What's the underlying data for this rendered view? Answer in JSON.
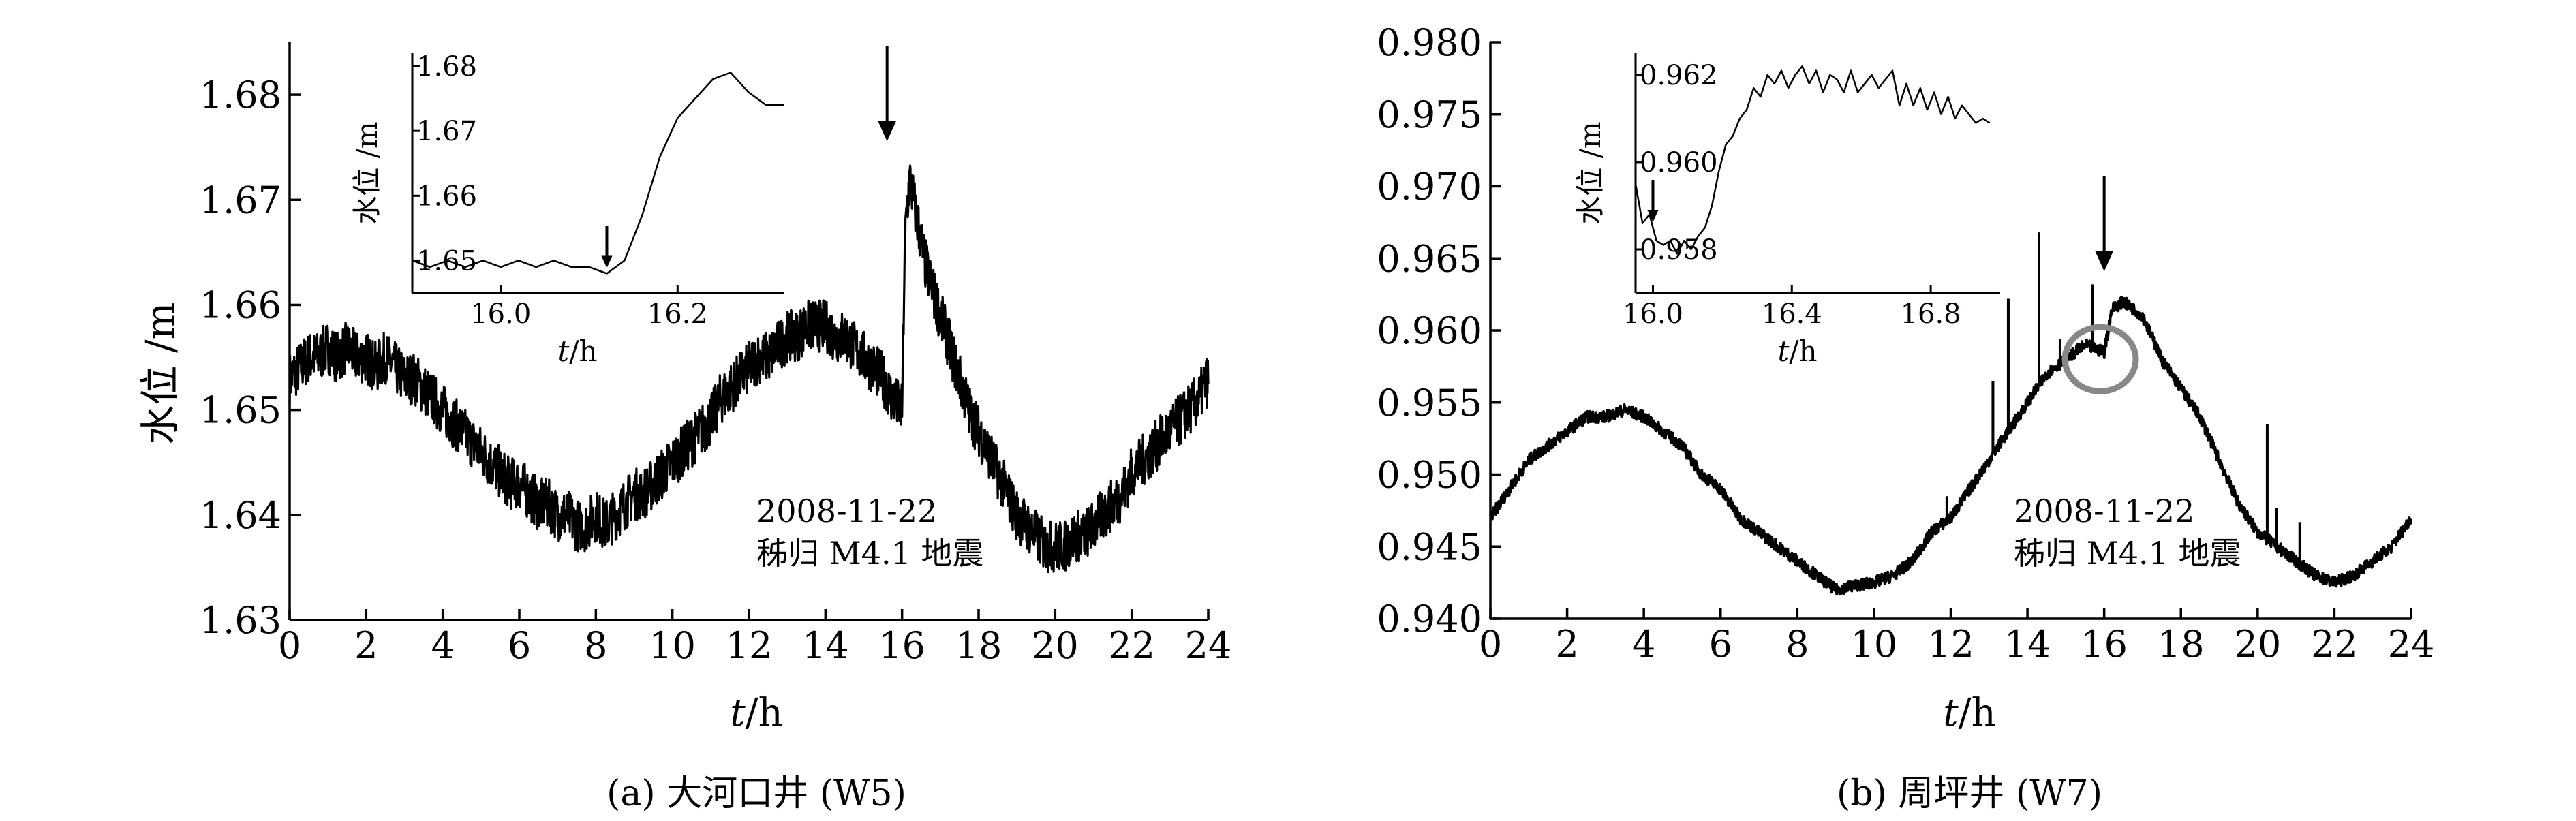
{
  "chart_data": [
    {
      "panel": "a",
      "type": "line",
      "caption": "(a) 大河口井 (W5)",
      "xlabel_italic": "t",
      "xlabel_unit": "/h",
      "ylabel": "水位 /m",
      "xlim": [
        0,
        24
      ],
      "ylim": [
        1.63,
        1.685
      ],
      "xticks": [
        "0",
        "2",
        "4",
        "6",
        "8",
        "10",
        "12",
        "14",
        "16",
        "18",
        "20",
        "22",
        "24"
      ],
      "yticks": [
        "1.63",
        "1.64",
        "1.65",
        "1.66",
        "1.67",
        "1.68"
      ],
      "annotation_date": "2008-11-22",
      "annotation_event": "秭归 M4.1 地震",
      "arrow_x": 16.0,
      "series": [
        {
          "x": [
            0,
            0.25,
            0.5,
            0.75,
            1,
            1.25,
            1.5,
            1.75,
            2,
            2.25,
            2.5,
            2.75,
            3,
            3.25,
            3.5,
            3.75,
            4,
            4.25,
            4.5,
            4.75,
            5,
            5.25,
            5.5,
            5.75,
            6,
            6.25,
            6.5,
            6.75,
            7,
            7.25,
            7.5,
            7.75,
            8,
            8.25,
            8.5,
            8.75,
            9,
            9.25,
            9.5,
            9.75,
            10,
            10.25,
            10.5,
            10.75,
            11,
            11.25,
            11.5,
            11.75,
            12,
            12.25,
            12.5,
            12.75,
            13,
            13.25,
            13.5,
            13.75,
            14,
            14.25,
            14.5,
            14.75,
            15,
            15.25,
            15.5,
            15.75,
            16,
            16.05,
            16.1,
            16.2,
            16.3,
            16.4,
            16.5,
            16.6,
            16.75,
            17,
            17.25,
            17.5,
            17.75,
            18,
            18.25,
            18.5,
            18.75,
            19,
            19.25,
            19.5,
            19.75,
            20,
            20.25,
            20.5,
            20.75,
            21,
            21.25,
            21.5,
            21.75,
            22,
            22.25,
            22.5,
            22.75,
            23,
            23.25,
            23.5,
            23.75,
            24
          ],
          "y": [
            1.653,
            1.654,
            1.655,
            1.655,
            1.656,
            1.655,
            1.656,
            1.655,
            1.655,
            1.654,
            1.655,
            1.654,
            1.653,
            1.653,
            1.652,
            1.651,
            1.65,
            1.649,
            1.648,
            1.647,
            1.646,
            1.645,
            1.644,
            1.643,
            1.643,
            1.642,
            1.641,
            1.641,
            1.64,
            1.64,
            1.639,
            1.639,
            1.64,
            1.639,
            1.64,
            1.641,
            1.642,
            1.642,
            1.643,
            1.644,
            1.645,
            1.646,
            1.647,
            1.648,
            1.649,
            1.651,
            1.652,
            1.653,
            1.654,
            1.655,
            1.655,
            1.656,
            1.657,
            1.657,
            1.658,
            1.658,
            1.658,
            1.657,
            1.657,
            1.656,
            1.655,
            1.654,
            1.653,
            1.651,
            1.65,
            1.661,
            1.668,
            1.672,
            1.67,
            1.668,
            1.666,
            1.664,
            1.662,
            1.659,
            1.656,
            1.653,
            1.65,
            1.648,
            1.646,
            1.644,
            1.642,
            1.64,
            1.639,
            1.638,
            1.637,
            1.637,
            1.637,
            1.638,
            1.638,
            1.639,
            1.64,
            1.641,
            1.642,
            1.644,
            1.645,
            1.646,
            1.647,
            1.648,
            1.649,
            1.65,
            1.651,
            1.653
          ]
        }
      ],
      "noise_amplitude": 0.0025,
      "inset": {
        "ylabel": "水位 /m",
        "xlabel_italic": "t",
        "xlabel_unit": "/h",
        "xlim": [
          15.9,
          16.32
        ],
        "ylim": [
          1.645,
          1.682
        ],
        "xticks": [
          "16.0",
          "16.2"
        ],
        "yticks": [
          "1.65",
          "1.66",
          "1.67",
          "1.68"
        ],
        "arrow_x": 16.12,
        "x": [
          15.9,
          15.92,
          15.94,
          15.96,
          15.98,
          16.0,
          16.02,
          16.04,
          16.06,
          16.08,
          16.1,
          16.12,
          16.14,
          16.16,
          16.18,
          16.2,
          16.22,
          16.24,
          16.26,
          16.28,
          16.3,
          16.32
        ],
        "y": [
          1.65,
          1.649,
          1.65,
          1.649,
          1.65,
          1.649,
          1.65,
          1.649,
          1.65,
          1.649,
          1.649,
          1.648,
          1.65,
          1.657,
          1.666,
          1.672,
          1.675,
          1.678,
          1.679,
          1.676,
          1.674,
          1.674
        ]
      }
    },
    {
      "panel": "b",
      "type": "line",
      "caption": "(b) 周坪井 (W7)",
      "xlabel_italic": "t",
      "xlabel_unit": "/h",
      "ylabel": "",
      "xlim": [
        0,
        24
      ],
      "ylim": [
        0.94,
        0.98
      ],
      "xticks": [
        "0",
        "2",
        "4",
        "6",
        "8",
        "10",
        "12",
        "14",
        "16",
        "18",
        "20",
        "22",
        "24"
      ],
      "yticks": [
        "0.940",
        "0.945",
        "0.950",
        "0.955",
        "0.960",
        "0.965",
        "0.970",
        "0.975",
        "0.980"
      ],
      "annotation_date": "2008-11-22",
      "annotation_event": "秭归 M4.1 地震",
      "arrow_x": 16.0,
      "circle_x": 15.9,
      "circle_y": 0.958,
      "series": [
        {
          "x": [
            0,
            0.5,
            1,
            1.5,
            2,
            2.5,
            3,
            3.5,
            4,
            4.5,
            5,
            5.5,
            6,
            6.5,
            7,
            7.5,
            8,
            8.5,
            9,
            9.5,
            10,
            10.5,
            11,
            11.5,
            12,
            12.5,
            13,
            13.5,
            14,
            14.5,
            15,
            15.5,
            16,
            16.2,
            16.5,
            17,
            17.5,
            18,
            18.5,
            19,
            19.5,
            20,
            20.5,
            21,
            21.5,
            22,
            22.5,
            23,
            23.5,
            24
          ],
          "y": [
            0.947,
            0.949,
            0.951,
            0.952,
            0.953,
            0.954,
            0.954,
            0.9545,
            0.954,
            0.953,
            0.952,
            0.95,
            0.949,
            0.947,
            0.946,
            0.945,
            0.944,
            0.943,
            0.942,
            0.9423,
            0.9425,
            0.943,
            0.944,
            0.946,
            0.947,
            0.949,
            0.951,
            0.953,
            0.955,
            0.957,
            0.958,
            0.959,
            0.9585,
            0.9615,
            0.962,
            0.961,
            0.958,
            0.956,
            0.954,
            0.951,
            0.948,
            0.946,
            0.945,
            0.944,
            0.943,
            0.9425,
            0.943,
            0.944,
            0.945,
            0.947
          ]
        }
      ],
      "spikes": [
        {
          "x": 11.9,
          "y": 0.9485
        },
        {
          "x": 13.1,
          "y": 0.9565
        },
        {
          "x": 13.5,
          "y": 0.9622
        },
        {
          "x": 14.3,
          "y": 0.9668
        },
        {
          "x": 14.85,
          "y": 0.9594
        },
        {
          "x": 15.7,
          "y": 0.9632
        },
        {
          "x": 20.25,
          "y": 0.9535
        },
        {
          "x": 20.5,
          "y": 0.9477
        },
        {
          "x": 21.1,
          "y": 0.9467
        }
      ],
      "noise_amplitude": 0.0004,
      "inset": {
        "ylabel": "水位 /m",
        "xlabel_italic": "t",
        "xlabel_unit": "/h",
        "xlim": [
          15.95,
          17.0
        ],
        "ylim": [
          0.957,
          0.9625
        ],
        "xticks": [
          "16.0",
          "16.4",
          "16.8"
        ],
        "yticks": [
          "0.958",
          "0.960",
          "0.962"
        ],
        "arrow_x": 16.0,
        "x": [
          15.95,
          15.97,
          15.99,
          16.01,
          16.03,
          16.05,
          16.07,
          16.09,
          16.11,
          16.13,
          16.15,
          16.17,
          16.19,
          16.21,
          16.23,
          16.25,
          16.27,
          16.29,
          16.31,
          16.33,
          16.35,
          16.37,
          16.39,
          16.41,
          16.43,
          16.45,
          16.47,
          16.49,
          16.51,
          16.53,
          16.55,
          16.57,
          16.59,
          16.61,
          16.63,
          16.65,
          16.67,
          16.69,
          16.71,
          16.73,
          16.75,
          16.77,
          16.79,
          16.81,
          16.83,
          16.85,
          16.87,
          16.89,
          16.91,
          16.93,
          16.95,
          16.97
        ],
        "y": [
          0.9595,
          0.9586,
          0.9588,
          0.9582,
          0.9581,
          0.9582,
          0.9579,
          0.9582,
          0.958,
          0.9583,
          0.9585,
          0.959,
          0.9598,
          0.9604,
          0.9606,
          0.961,
          0.9612,
          0.9617,
          0.9615,
          0.962,
          0.9618,
          0.9621,
          0.9617,
          0.962,
          0.9622,
          0.9618,
          0.9621,
          0.9616,
          0.962,
          0.9619,
          0.9616,
          0.9621,
          0.9616,
          0.9618,
          0.962,
          0.9617,
          0.9619,
          0.9621,
          0.9613,
          0.9618,
          0.9613,
          0.9617,
          0.9612,
          0.9616,
          0.9611,
          0.9615,
          0.961,
          0.9613,
          0.9611,
          0.9609,
          0.961,
          0.9609
        ]
      }
    }
  ]
}
